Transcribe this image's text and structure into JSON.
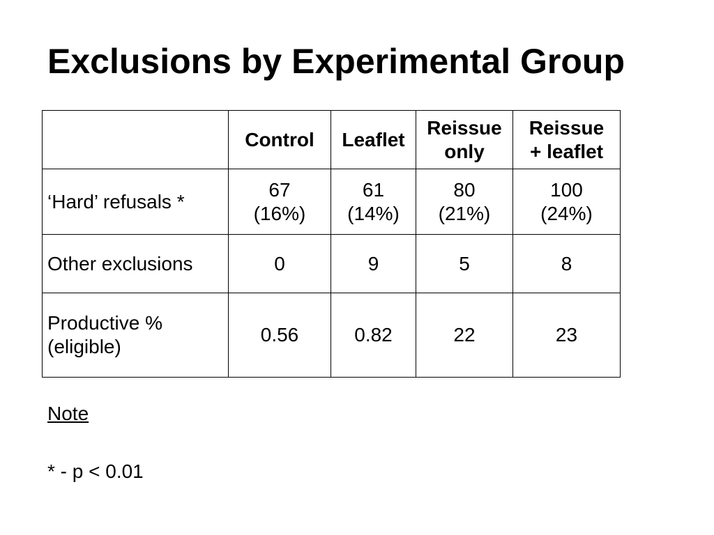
{
  "slide": {
    "title": "Exclusions by Experimental Group"
  },
  "table": {
    "header": {
      "corner": "",
      "control": "Control",
      "leaflet": "Leaflet",
      "reissue_only": [
        "Reissue",
        "only"
      ],
      "reissue_leaflet": [
        "Reissue",
        "+ leaflet"
      ]
    },
    "rows": [
      {
        "label": [
          "‘Hard’ refusals *"
        ],
        "control": [
          "67",
          "(16%)"
        ],
        "leaflet": [
          "61",
          "(14%)"
        ],
        "reissue_only": [
          "80",
          "(21%)"
        ],
        "reissue_leaflet": [
          "100",
          "(24%)"
        ]
      },
      {
        "label": [
          "Other exclusions"
        ],
        "control": [
          "0"
        ],
        "leaflet": [
          "9"
        ],
        "reissue_only": [
          "5"
        ],
        "reissue_leaflet": [
          "8"
        ]
      },
      {
        "label": [
          "Productive %",
          "(eligible)"
        ],
        "control": [
          "0.56"
        ],
        "leaflet": [
          "0.82"
        ],
        "reissue_only": [
          "22"
        ],
        "reissue_leaflet": [
          "23"
        ]
      }
    ]
  },
  "note": {
    "heading": "Note",
    "text": "* - p < 0.01"
  }
}
